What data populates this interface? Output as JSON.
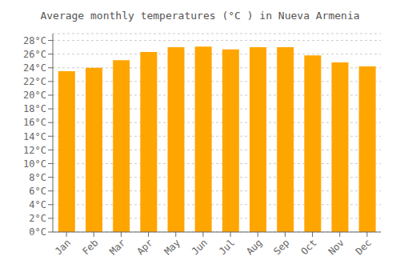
{
  "chart_data": {
    "type": "bar",
    "title": "Average monthly temperatures (°C ) in Nueva Armenia",
    "categories": [
      "Jan",
      "Feb",
      "Mar",
      "Apr",
      "May",
      "Jun",
      "Jul",
      "Aug",
      "Sep",
      "Oct",
      "Nov",
      "Dec"
    ],
    "values": [
      23.5,
      24.0,
      25.1,
      26.3,
      27.0,
      27.1,
      26.7,
      27.0,
      27.0,
      25.8,
      24.8,
      24.2
    ],
    "color": "#FFA500",
    "ylim": [
      0,
      29
    ],
    "yticks": [
      {
        "value": 0,
        "label": "0°C"
      },
      {
        "value": 2,
        "label": "2°C"
      },
      {
        "value": 4,
        "label": "4°C"
      },
      {
        "value": 6,
        "label": "6°C"
      },
      {
        "value": 8,
        "label": "8°C"
      },
      {
        "value": 10,
        "label": "10°C"
      },
      {
        "value": 12,
        "label": "12°C"
      },
      {
        "value": 14,
        "label": "14°C"
      },
      {
        "value": 16,
        "label": "16°C"
      },
      {
        "value": 18,
        "label": "18°C"
      },
      {
        "value": 20,
        "label": "20°C"
      },
      {
        "value": 22,
        "label": "22°C"
      },
      {
        "value": 24,
        "label": "24°C"
      },
      {
        "value": 26,
        "label": "26°C"
      },
      {
        "value": 28,
        "label": "28°C"
      }
    ],
    "grid": true
  }
}
